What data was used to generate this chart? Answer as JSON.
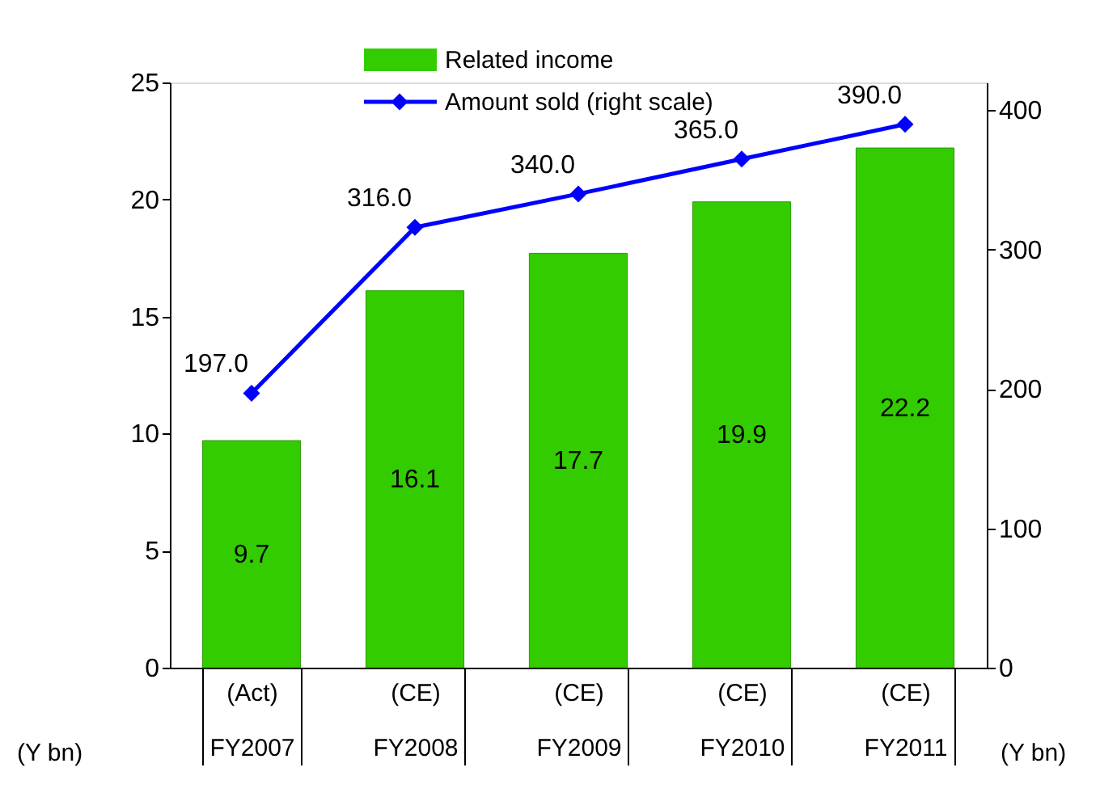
{
  "chart_data": {
    "type": "bar",
    "categories": [
      "(Act)\nFY2007",
      "(CE)\nFY2008",
      "(CE)\nFY2009",
      "(CE)\nFY2010",
      "(CE)\nFY2011"
    ],
    "series": [
      {
        "name": "Related income",
        "color": "#33cc00",
        "values": [
          9.7,
          16.1,
          17.7,
          19.9,
          22.2
        ],
        "data_labels": true
      },
      {
        "name": "Amount sold (right scale)",
        "type": "line",
        "axis": "y2",
        "color": "#0000ff",
        "marker": "diamond",
        "values": [
          197.0,
          316.0,
          340.0,
          365.0,
          390.0
        ],
        "value_labels": [
          "197.0",
          "316.0",
          "340.0",
          "365.0",
          "390.0"
        ]
      }
    ],
    "ylabel": "(Y bn)",
    "y2label": "(Y bn)",
    "ylim": [
      0,
      25
    ],
    "yticks": [
      0,
      5,
      10,
      15,
      20,
      25
    ],
    "y2lim": [
      0,
      420
    ],
    "y2ticks": [
      0,
      100,
      200,
      300,
      400
    ],
    "grid": false,
    "legend": "top"
  }
}
